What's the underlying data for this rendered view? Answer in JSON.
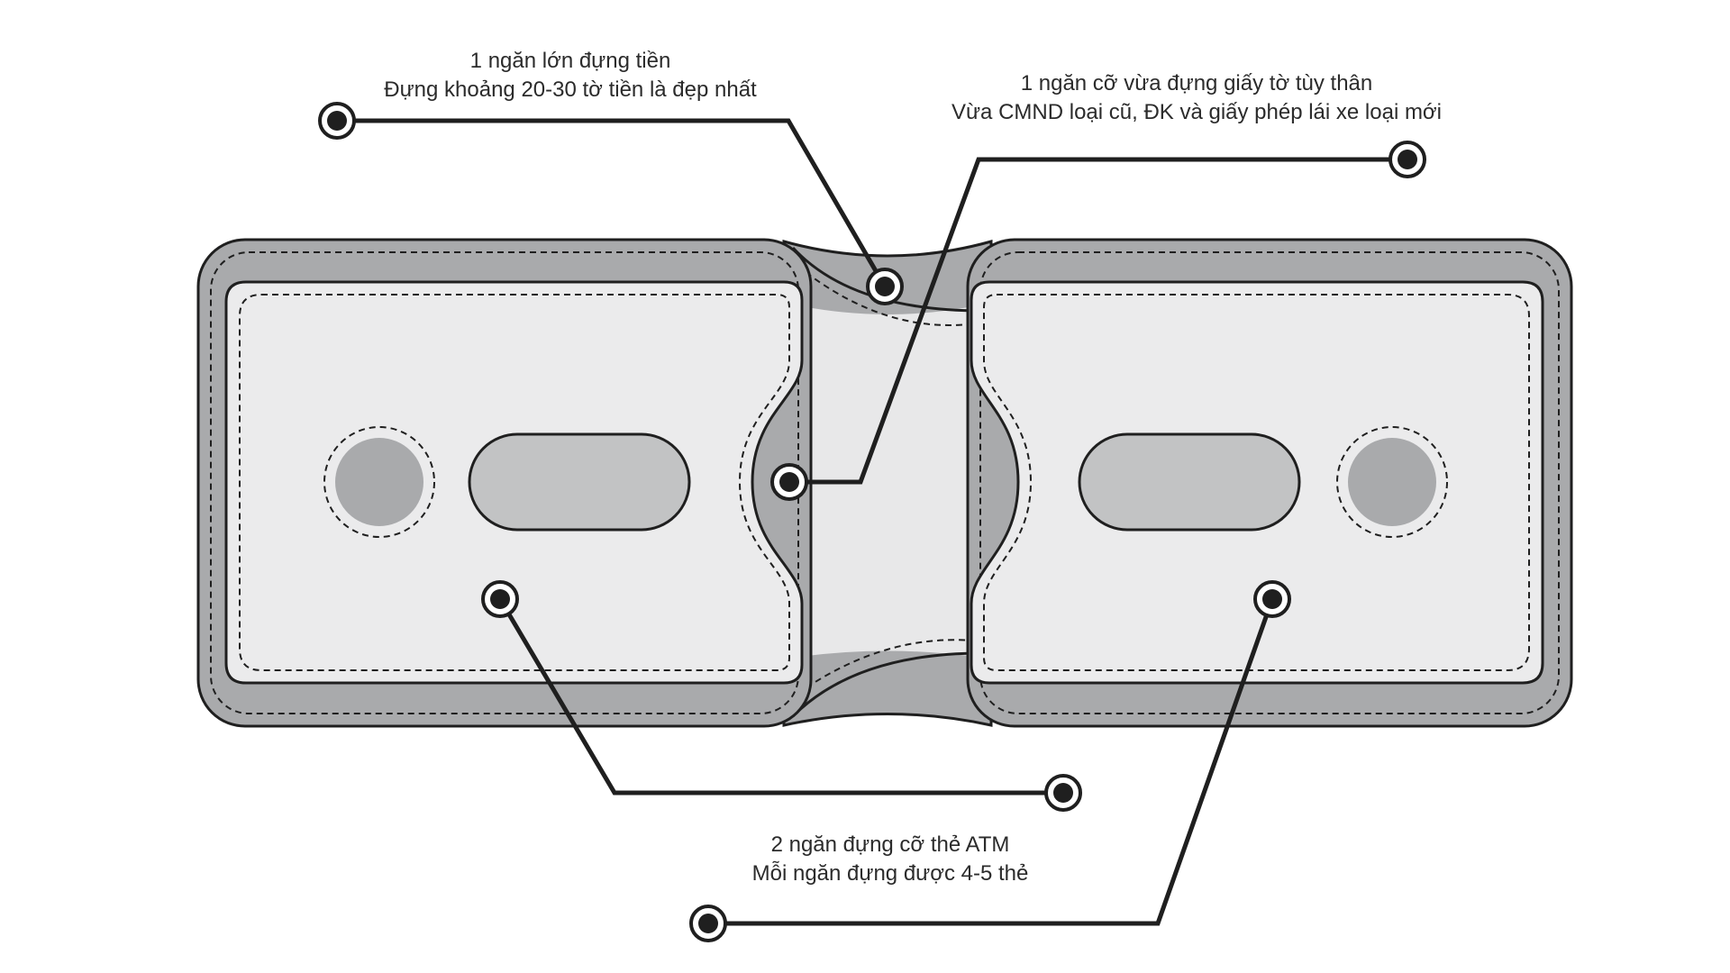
{
  "callouts": {
    "money_pocket": {
      "line1": "1 ngăn lớn đựng tiền",
      "line2": "Đựng khoảng 20-30 tờ tiền là đẹp nhất"
    },
    "id_pocket": {
      "line1": "1 ngăn cỡ vừa đựng giấy tờ tùy thân",
      "line2": "Vừa CMND loại cũ, ĐK và giấy phép lái xe loại mới"
    },
    "card_pockets": {
      "line1": "2 ngăn đựng cỡ thẻ ATM",
      "line2": "Mỗi ngăn đựng được 4-5 thẻ"
    }
  },
  "colors": {
    "outer_leather": "#a9aaac",
    "card_panel": "#ebebec",
    "middle_panel": "#e8e8e9",
    "slot": "#c2c3c4",
    "button": "#a9aaac",
    "outline": "#1f1f1f",
    "leader_line": "#1f1f1f"
  }
}
